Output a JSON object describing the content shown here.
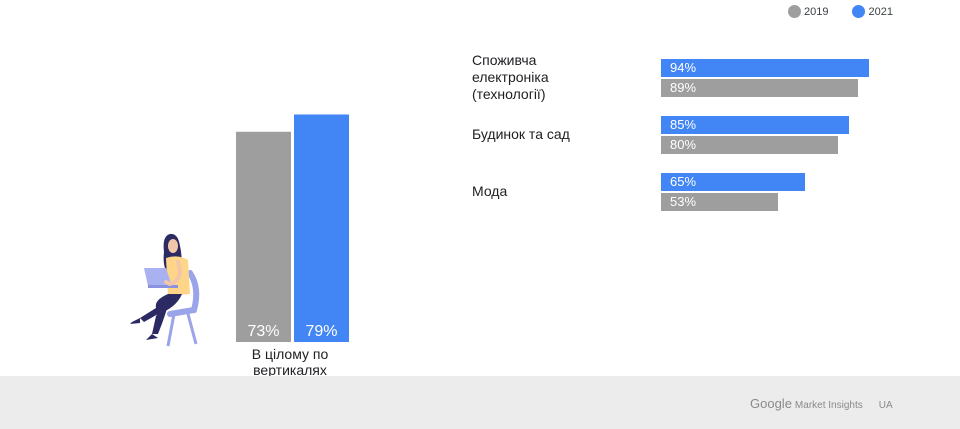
{
  "legend": [
    {
      "label": "2019",
      "color": "#9e9e9e"
    },
    {
      "label": "2021",
      "color": "#4285f4"
    }
  ],
  "chart_data": [
    {
      "type": "bar",
      "categories": [
        "В цілому по вертикалях"
      ],
      "series": [
        {
          "name": "2019",
          "values": [
            73
          ],
          "labels": [
            "73%"
          ]
        },
        {
          "name": "2021",
          "values": [
            79
          ],
          "labels": [
            "79%"
          ]
        }
      ],
      "ylim": [
        0,
        100
      ],
      "grid": false
    },
    {
      "type": "bar",
      "orientation": "horizontal",
      "categories": [
        "Споживча електроніка (технології)",
        "Будинок та сад",
        "Мода"
      ],
      "series": [
        {
          "name": "2021",
          "values": [
            94,
            85,
            65
          ],
          "labels": [
            "94%",
            "85%",
            "65%"
          ]
        },
        {
          "name": "2019",
          "values": [
            89,
            80,
            53
          ],
          "labels": [
            "89%",
            "80%",
            "53%"
          ]
        }
      ],
      "xlim": [
        0,
        100
      ],
      "grid": false,
      "legend": "top-right"
    }
  ],
  "overall": {
    "caption_line1": "В цілому по",
    "caption_line2": "вертикалях"
  },
  "categories": [
    {
      "lines": [
        "Споживча",
        "електроніка",
        "(технології)"
      ],
      "v2021": 94,
      "l2021": "94%",
      "v2019": 89,
      "l2019": "89%"
    },
    {
      "lines": [
        "Будинок та сад"
      ],
      "v2021": 85,
      "l2021": "85%",
      "v2019": 80,
      "l2019": "80%"
    },
    {
      "lines": [
        "Мода"
      ],
      "v2021": 65,
      "l2021": "65%",
      "v2019": 53,
      "l2019": "53%"
    }
  ],
  "colors": {
    "y2019": "#9e9e9e",
    "y2021": "#4285f4"
  },
  "icons": {
    "illustration": "woman-with-laptop-icon"
  },
  "footer": {
    "google": "Google",
    "product": "Market Insights",
    "country": "UA"
  }
}
